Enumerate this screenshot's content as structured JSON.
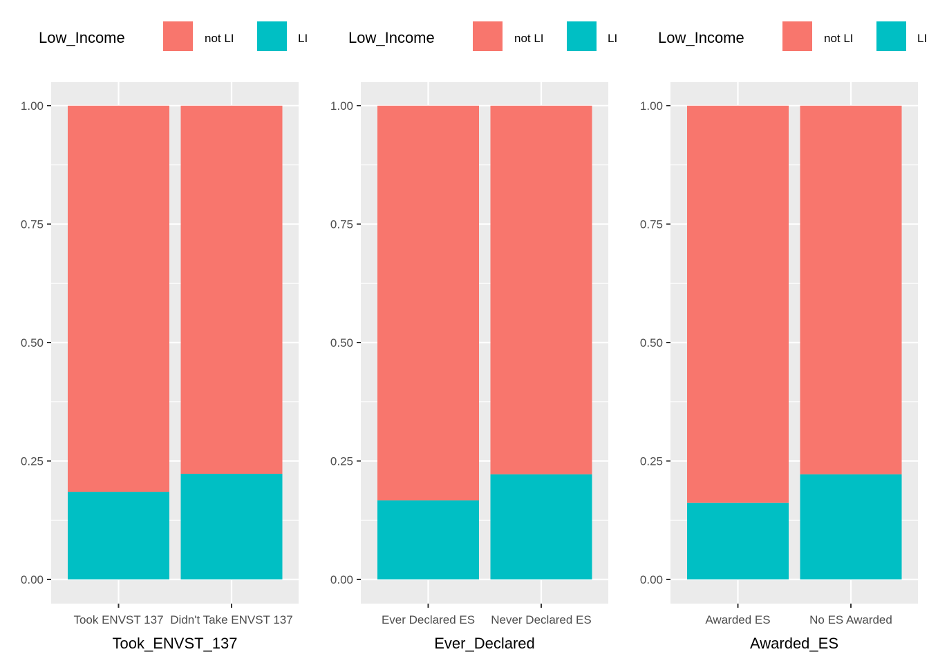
{
  "colors": {
    "not_LI": "#F8766D",
    "LI": "#00BFC4",
    "panel_bg": "#EBEBEB",
    "grid_major": "#FFFFFF",
    "tick_mark": "#333333"
  },
  "chart_data": [
    {
      "type": "bar",
      "stacked": true,
      "position": "fill",
      "xlabel": "Took_ENVST_137",
      "ylabel": "",
      "ylim": [
        0,
        1
      ],
      "yticks": [
        "0.00",
        "0.25",
        "0.50",
        "0.75",
        "1.00"
      ],
      "categories": [
        "Took ENVST 137",
        "Didn't Take ENVST 137"
      ],
      "legend": {
        "title": "Low_Income",
        "position": "top",
        "entries": [
          "not LI",
          "LI"
        ]
      },
      "series": [
        {
          "name": "not LI",
          "values": [
            0.815,
            0.777
          ]
        },
        {
          "name": "LI",
          "values": [
            0.185,
            0.223
          ]
        }
      ],
      "grid": true
    },
    {
      "type": "bar",
      "stacked": true,
      "position": "fill",
      "xlabel": "Ever_Declared",
      "ylabel": "",
      "ylim": [
        0,
        1
      ],
      "yticks": [
        "0.00",
        "0.25",
        "0.50",
        "0.75",
        "1.00"
      ],
      "categories": [
        "Ever Declared ES",
        "Never Declared ES"
      ],
      "legend": {
        "title": "Low_Income",
        "position": "top",
        "entries": [
          "not LI",
          "LI"
        ]
      },
      "series": [
        {
          "name": "not LI",
          "values": [
            0.833,
            0.778
          ]
        },
        {
          "name": "LI",
          "values": [
            0.167,
            0.222
          ]
        }
      ],
      "grid": true
    },
    {
      "type": "bar",
      "stacked": true,
      "position": "fill",
      "xlabel": "Awarded_ES",
      "ylabel": "",
      "ylim": [
        0,
        1
      ],
      "yticks": [
        "0.00",
        "0.25",
        "0.50",
        "0.75",
        "1.00"
      ],
      "categories": [
        "Awarded ES",
        "No ES Awarded"
      ],
      "legend": {
        "title": "Low_Income",
        "position": "top",
        "entries": [
          "not LI",
          "LI"
        ]
      },
      "series": [
        {
          "name": "not LI",
          "values": [
            0.838,
            0.778
          ]
        },
        {
          "name": "LI",
          "values": [
            0.162,
            0.222
          ]
        }
      ],
      "grid": true
    }
  ]
}
